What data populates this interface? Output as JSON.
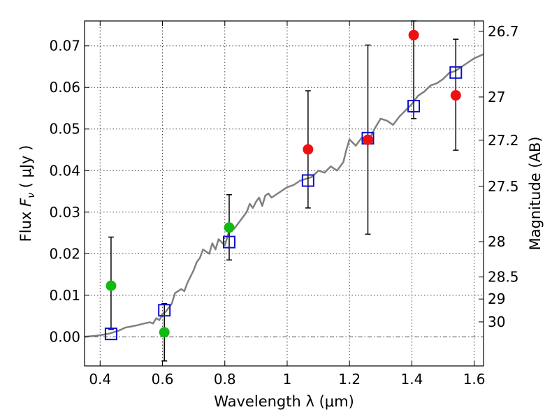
{
  "chart_data": {
    "type": "scatter",
    "xlabel": "Wavelength  λ (μm)",
    "ylabel_prefix": "Flux  ",
    "ylabel_symbol": "F",
    "ylabel_sub": "ν",
    "ylabel_suffix": "  ( μJy )",
    "y2label": "Magnitude (AB)",
    "xlim": [
      0.35,
      1.63
    ],
    "ylim": [
      -0.007,
      0.076
    ],
    "grid": true,
    "xticks": [
      0.4,
      0.6,
      0.8,
      1.0,
      1.2,
      1.4,
      1.6
    ],
    "xtick_labels": [
      "0.4",
      "0.6",
      "0.8",
      "1",
      "1.2",
      "1.4",
      "1.6"
    ],
    "yticks": [
      0.0,
      0.01,
      0.02,
      0.03,
      0.04,
      0.05,
      0.06,
      0.07
    ],
    "ytick_labels": [
      "0.00",
      "0.01",
      "0.02",
      "0.03",
      "0.04",
      "0.05",
      "0.06",
      "0.07"
    ],
    "mag_ticks": [
      {
        "flux": 0.0735,
        "label": "26.7"
      },
      {
        "flux": 0.0577,
        "label": "27"
      },
      {
        "flux": 0.0473,
        "label": "27.2"
      },
      {
        "flux": 0.0362,
        "label": "27.5"
      },
      {
        "flux": 0.0229,
        "label": "28"
      },
      {
        "flux": 0.0144,
        "label": "28.5"
      },
      {
        "flux": 0.0091,
        "label": "29"
      },
      {
        "flux": 0.0036,
        "label": "30"
      }
    ],
    "series": [
      {
        "name": "observed (green)",
        "marker": "circle",
        "color": "#11bb11",
        "points": [
          {
            "x": 0.435,
            "y": 0.0123,
            "err_low": 0.0018,
            "err_high": 0.024
          },
          {
            "x": 0.606,
            "y": 0.0011,
            "err_low": -0.0058,
            "err_high": 0.008
          },
          {
            "x": 0.814,
            "y": 0.0263,
            "err_low": 0.0185,
            "err_high": 0.0342
          }
        ]
      },
      {
        "name": "observed (red)",
        "marker": "circle",
        "color": "#ee1111",
        "points": [
          {
            "x": 1.067,
            "y": 0.0451,
            "err_low": 0.031,
            "err_high": 0.0592
          },
          {
            "x": 1.259,
            "y": 0.0474,
            "err_low": 0.0247,
            "err_high": 0.0702
          },
          {
            "x": 1.406,
            "y": 0.0726,
            "err_low": 0.0525,
            "err_high": 0.076
          },
          {
            "x": 1.541,
            "y": 0.0581,
            "err_low": 0.0449,
            "err_high": 0.0716
          }
        ]
      },
      {
        "name": "model photometry",
        "marker": "square",
        "color": "#1010cc",
        "points": [
          {
            "x": 0.435,
            "y": 0.0007
          },
          {
            "x": 0.606,
            "y": 0.0064
          },
          {
            "x": 0.814,
            "y": 0.0228
          },
          {
            "x": 1.067,
            "y": 0.0376
          },
          {
            "x": 1.259,
            "y": 0.0478
          },
          {
            "x": 1.406,
            "y": 0.0555
          },
          {
            "x": 1.541,
            "y": 0.0636
          }
        ]
      },
      {
        "name": "model spectrum",
        "marker": "line",
        "color": "#808080",
        "x": [
          0.35,
          0.38,
          0.4,
          0.43,
          0.46,
          0.48,
          0.5,
          0.52,
          0.54,
          0.56,
          0.57,
          0.58,
          0.59,
          0.6,
          0.61,
          0.62,
          0.63,
          0.64,
          0.65,
          0.66,
          0.67,
          0.68,
          0.7,
          0.71,
          0.72,
          0.73,
          0.74,
          0.75,
          0.76,
          0.77,
          0.78,
          0.8,
          0.81,
          0.82,
          0.83,
          0.84,
          0.85,
          0.87,
          0.88,
          0.89,
          0.9,
          0.91,
          0.92,
          0.93,
          0.94,
          0.95,
          0.97,
          0.98,
          1.0,
          1.02,
          1.04,
          1.06,
          1.08,
          1.1,
          1.12,
          1.14,
          1.16,
          1.18,
          1.19,
          1.2,
          1.22,
          1.24,
          1.26,
          1.28,
          1.3,
          1.32,
          1.34,
          1.36,
          1.38,
          1.4,
          1.42,
          1.44,
          1.46,
          1.48,
          1.5,
          1.52,
          1.54,
          1.56,
          1.58,
          1.6,
          1.63
        ],
        "y": [
          0.0,
          0.0002,
          0.0004,
          0.0008,
          0.0015,
          0.0022,
          0.0025,
          0.0028,
          0.0032,
          0.0035,
          0.0032,
          0.0045,
          0.004,
          0.0055,
          0.006,
          0.007,
          0.008,
          0.0105,
          0.011,
          0.0115,
          0.011,
          0.013,
          0.016,
          0.018,
          0.019,
          0.021,
          0.0205,
          0.02,
          0.0225,
          0.021,
          0.0235,
          0.022,
          0.0245,
          0.0265,
          0.026,
          0.027,
          0.028,
          0.03,
          0.032,
          0.031,
          0.0325,
          0.0335,
          0.0315,
          0.034,
          0.0345,
          0.0335,
          0.0345,
          0.035,
          0.036,
          0.0365,
          0.0375,
          0.038,
          0.0385,
          0.04,
          0.0395,
          0.041,
          0.04,
          0.042,
          0.045,
          0.0475,
          0.046,
          0.048,
          0.047,
          0.05,
          0.0525,
          0.052,
          0.051,
          0.053,
          0.0545,
          0.056,
          0.058,
          0.059,
          0.0605,
          0.061,
          0.062,
          0.0635,
          0.064,
          0.065,
          0.066,
          0.067,
          0.068
        ]
      }
    ]
  }
}
